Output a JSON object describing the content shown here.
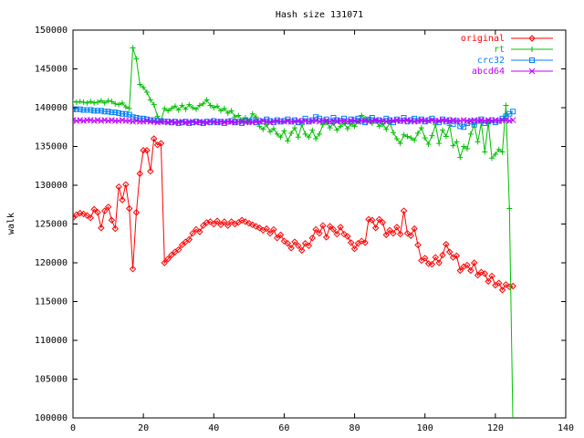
{
  "chart_data": {
    "type": "line",
    "title": "Hash size 131071",
    "ylabel": "walk",
    "x": [
      0,
      1,
      2,
      3,
      4,
      5,
      6,
      7,
      8,
      9,
      10,
      11,
      12,
      13,
      14,
      15,
      16,
      17,
      18,
      19,
      20,
      21,
      22,
      23,
      24,
      25,
      26,
      27,
      28,
      29,
      30,
      31,
      32,
      33,
      34,
      35,
      36,
      37,
      38,
      39,
      40,
      41,
      42,
      43,
      44,
      45,
      46,
      47,
      48,
      49,
      50,
      51,
      52,
      53,
      54,
      55,
      56,
      57,
      58,
      59,
      60,
      61,
      62,
      63,
      64,
      65,
      66,
      67,
      68,
      69,
      70,
      71,
      72,
      73,
      74,
      75,
      76,
      77,
      78,
      79,
      80,
      81,
      82,
      83,
      84,
      85,
      86,
      87,
      88,
      89,
      90,
      91,
      92,
      93,
      94,
      95,
      96,
      97,
      98,
      99,
      100,
      101,
      102,
      103,
      104,
      105,
      106,
      107,
      108,
      109,
      110,
      111,
      112,
      113,
      114,
      115,
      116,
      117,
      118,
      119,
      120,
      121,
      122,
      123,
      124,
      125
    ],
    "series": [
      {
        "name": "original",
        "color": "#ff0000",
        "marker": "diamond",
        "values": [
          125800,
          126200,
          126400,
          126300,
          126100,
          125800,
          126900,
          126500,
          124500,
          126700,
          127200,
          125500,
          124400,
          129800,
          128100,
          130100,
          127000,
          119200,
          126500,
          131500,
          134500,
          134500,
          131800,
          136000,
          135200,
          135400,
          120000,
          120500,
          121000,
          121400,
          121700,
          122300,
          122700,
          123000,
          123800,
          124300,
          124000,
          124800,
          125200,
          125300,
          125000,
          125400,
          124900,
          125300,
          124800,
          125300,
          125000,
          125200,
          125500,
          125300,
          125100,
          124900,
          124700,
          124500,
          124200,
          124400,
          123800,
          124300,
          123200,
          123600,
          122800,
          122500,
          121900,
          122700,
          122200,
          121600,
          122500,
          122200,
          123200,
          124300,
          123800,
          124800,
          123300,
          124700,
          124300,
          123700,
          124600,
          123700,
          123400,
          122600,
          121800,
          122500,
          122800,
          122600,
          125600,
          125500,
          124500,
          125600,
          125200,
          123600,
          124200,
          123800,
          124600,
          123700,
          126700,
          123800,
          123500,
          124400,
          122300,
          120300,
          120600,
          119900,
          119800,
          120700,
          120000,
          121000,
          122400,
          121400,
          120700,
          120900,
          119000,
          119500,
          119700,
          119000,
          120000,
          118400,
          118800,
          118600,
          117600,
          118300,
          117100,
          117400,
          116500,
          117200,
          116900,
          117000
        ]
      },
      {
        "name": "rt",
        "color": "#00c000",
        "marker": "plus",
        "values": [
          140800,
          140700,
          140800,
          140700,
          140600,
          140800,
          140600,
          140700,
          140900,
          140600,
          140900,
          140800,
          140500,
          140400,
          140600,
          140100,
          139900,
          147700,
          146300,
          143000,
          142600,
          142000,
          141000,
          140400,
          138900,
          138300,
          139900,
          139600,
          139900,
          140200,
          139700,
          140300,
          139800,
          140400,
          140000,
          139800,
          140300,
          140500,
          141000,
          140300,
          140000,
          140200,
          139600,
          139900,
          139300,
          139600,
          138800,
          139000,
          138400,
          138700,
          138300,
          139200,
          138800,
          137600,
          137200,
          137800,
          136900,
          137300,
          136600,
          136200,
          137000,
          135700,
          136700,
          137400,
          136200,
          137800,
          136600,
          136200,
          137100,
          136000,
          136600,
          137800,
          138100,
          137400,
          138000,
          137100,
          137600,
          138000,
          137300,
          137900,
          137600,
          138200,
          139000,
          138600,
          138400,
          138000,
          138300,
          137600,
          137900,
          137200,
          138100,
          136800,
          136000,
          135400,
          136500,
          136300,
          136100,
          135800,
          136700,
          137400,
          136100,
          135300,
          136400,
          137800,
          135400,
          137100,
          136300,
          137700,
          135100,
          135600,
          133600,
          135000,
          134700,
          136600,
          137800,
          135600,
          138000,
          134300,
          138100,
          133500,
          134000,
          134600,
          134300,
          140300,
          127000,
          99000
        ]
      },
      {
        "name": "crc32",
        "color": "#0080ff",
        "marker": "square",
        "values": [
          139800,
          139800,
          139800,
          139700,
          139700,
          139700,
          139600,
          139600,
          139600,
          139500,
          139500,
          139400,
          139400,
          139300,
          139200,
          139200,
          139100,
          138800,
          138700,
          138600,
          138600,
          138500,
          138400,
          138400,
          138300,
          138300,
          138200,
          138200,
          138100,
          138200,
          138000,
          138100,
          138200,
          138000,
          138100,
          138200,
          138100,
          138000,
          138200,
          138100,
          138300,
          138100,
          138200,
          138000,
          138200,
          138300,
          138100,
          138200,
          138000,
          138300,
          138200,
          138400,
          138100,
          138300,
          138200,
          138500,
          138300,
          138100,
          138400,
          138200,
          138300,
          138500,
          138200,
          138400,
          138100,
          138300,
          138600,
          138200,
          138400,
          138800,
          138600,
          138300,
          138500,
          138200,
          138700,
          138400,
          138300,
          138600,
          138200,
          138500,
          138400,
          138600,
          138300,
          138100,
          138500,
          138700,
          138300,
          138400,
          138200,
          138600,
          138400,
          138100,
          138500,
          138300,
          138700,
          138200,
          138400,
          138600,
          138300,
          138500,
          138200,
          138400,
          138600,
          138300,
          138100,
          138500,
          138200,
          138400,
          137900,
          138300,
          137600,
          137500,
          138000,
          138200,
          137800,
          138300,
          138500,
          138000,
          138200,
          138400,
          138100,
          138300,
          138600,
          138900,
          139200,
          139500
        ]
      },
      {
        "name": "abcd64",
        "color": "#c000ff",
        "marker": "cross",
        "values": [
          138400,
          138300,
          138400,
          138300,
          138400,
          138400,
          138300,
          138400,
          138300,
          138400,
          138300,
          138400,
          138300,
          138300,
          138400,
          138300,
          138300,
          138200,
          138300,
          138200,
          138200,
          138300,
          138200,
          138200,
          138100,
          138200,
          138200,
          138100,
          138200,
          138100,
          138100,
          138200,
          138100,
          138100,
          138200,
          138100,
          138200,
          138100,
          138100,
          138200,
          138200,
          138100,
          138200,
          138100,
          138200,
          138200,
          138100,
          138200,
          138200,
          138100,
          138200,
          138100,
          138200,
          138200,
          138300,
          138200,
          138100,
          138200,
          138300,
          138200,
          138200,
          138300,
          138200,
          138200,
          138300,
          138200,
          138300,
          138200,
          138300,
          138300,
          138200,
          138300,
          138300,
          138200,
          138300,
          138200,
          138300,
          138300,
          138200,
          138300,
          138300,
          138200,
          138300,
          138300,
          138200,
          138300,
          138400,
          138300,
          138300,
          138200,
          138300,
          138300,
          138400,
          138300,
          138300,
          138400,
          138300,
          138200,
          138300,
          138400,
          138300,
          138300,
          138400,
          138300,
          138300,
          138400,
          138300,
          138300,
          138400,
          138300,
          138300,
          138400,
          138300,
          138300,
          138400,
          138300,
          138400,
          138300,
          138400,
          138300,
          138400,
          138300,
          138400,
          138400,
          138300,
          138400
        ]
      }
    ],
    "xlim": [
      0,
      140
    ],
    "xticks": [
      0,
      20,
      40,
      60,
      80,
      100,
      120,
      140
    ],
    "ylim": [
      100000,
      150000
    ],
    "yticks": [
      100000,
      105000,
      110000,
      115000,
      120000,
      125000,
      130000,
      135000,
      140000,
      145000,
      150000
    ],
    "legend": "top-right"
  }
}
